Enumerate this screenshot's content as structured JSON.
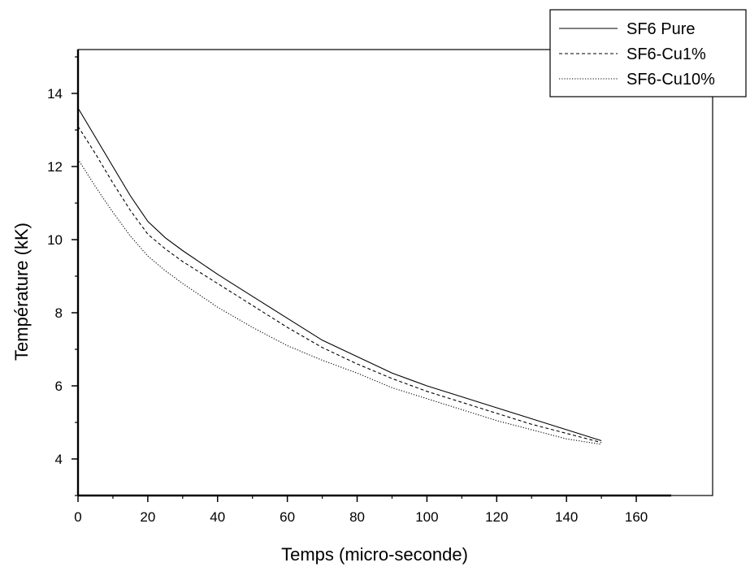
{
  "chart_data": {
    "type": "line",
    "xlabel": "Temps (micro-seconde)",
    "ylabel": "Température (kK)",
    "xlim": [
      0,
      170
    ],
    "ylim": [
      3,
      15.2
    ],
    "x_ticks": [
      0,
      20,
      40,
      60,
      80,
      100,
      120,
      140,
      160
    ],
    "y_ticks": [
      4,
      6,
      8,
      10,
      12,
      14
    ],
    "grid": false,
    "legend_position": "top-right",
    "series": [
      {
        "name": "SF6 Pure",
        "style": "solid",
        "x": [
          0,
          5,
          10,
          15,
          20,
          25,
          30,
          40,
          50,
          60,
          70,
          80,
          90,
          100,
          110,
          120,
          130,
          140,
          150
        ],
        "y": [
          13.6,
          12.8,
          12.0,
          11.2,
          10.5,
          10.05,
          9.7,
          9.05,
          8.45,
          7.85,
          7.25,
          6.8,
          6.35,
          6.0,
          5.7,
          5.4,
          5.1,
          4.8,
          4.5
        ]
      },
      {
        "name": "SF6-Cu1%",
        "style": "dashed",
        "x": [
          0,
          5,
          10,
          15,
          20,
          25,
          30,
          40,
          50,
          60,
          70,
          80,
          90,
          100,
          110,
          120,
          130,
          140,
          150
        ],
        "y": [
          13.1,
          12.35,
          11.55,
          10.8,
          10.15,
          9.75,
          9.4,
          8.8,
          8.2,
          7.6,
          7.05,
          6.6,
          6.2,
          5.85,
          5.55,
          5.25,
          4.95,
          4.7,
          4.45
        ]
      },
      {
        "name": "SF6-Cu10%",
        "style": "dotted",
        "x": [
          0,
          5,
          10,
          15,
          20,
          25,
          30,
          40,
          50,
          60,
          70,
          80,
          90,
          100,
          110,
          120,
          130,
          140,
          150
        ],
        "y": [
          12.2,
          11.45,
          10.75,
          10.1,
          9.55,
          9.15,
          8.8,
          8.15,
          7.6,
          7.1,
          6.7,
          6.35,
          5.95,
          5.65,
          5.35,
          5.05,
          4.8,
          4.55,
          4.4
        ]
      }
    ]
  }
}
